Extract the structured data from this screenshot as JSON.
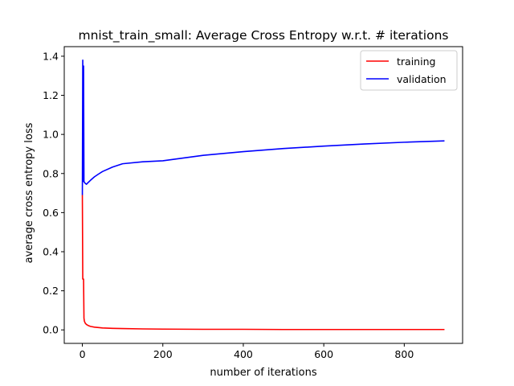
{
  "chart_data": {
    "type": "line",
    "title": "mnist_train_small: Average Cross Entropy w.r.t. # iterations",
    "xlabel": "number of iterations",
    "ylabel": "average cross entropy loss",
    "xlim": [
      -45,
      945
    ],
    "ylim": [
      -0.069,
      1.449
    ],
    "xticks": [
      0,
      200,
      400,
      600,
      800
    ],
    "yticks": [
      0.0,
      0.2,
      0.4,
      0.6,
      0.8,
      1.0,
      1.2,
      1.4
    ],
    "xtick_labels": [
      "0",
      "200",
      "400",
      "600",
      "800"
    ],
    "ytick_labels": [
      "0.0",
      "0.2",
      "0.4",
      "0.6",
      "0.8",
      "1.0",
      "1.2",
      "1.4"
    ],
    "grid": false,
    "legend_position": "top-right",
    "series": [
      {
        "name": "training",
        "color": "#ff0000",
        "x": [
          0,
          1,
          2,
          3,
          4,
          5,
          7,
          10,
          15,
          20,
          30,
          40,
          50,
          75,
          100,
          150,
          200,
          300,
          400,
          500,
          600,
          700,
          800,
          900
        ],
        "y": [
          0.69,
          0.26,
          0.26,
          0.26,
          0.06,
          0.045,
          0.035,
          0.028,
          0.022,
          0.018,
          0.014,
          0.012,
          0.01,
          0.008,
          0.007,
          0.005,
          0.004,
          0.003,
          0.003,
          0.002,
          0.002,
          0.002,
          0.002,
          0.002
        ]
      },
      {
        "name": "validation",
        "color": "#0000ff",
        "x": [
          0,
          1,
          2,
          3,
          4,
          5,
          7,
          10,
          15,
          20,
          30,
          40,
          50,
          75,
          100,
          150,
          200,
          300,
          400,
          500,
          600,
          700,
          800,
          900
        ],
        "y": [
          0.69,
          1.38,
          0.76,
          1.35,
          0.76,
          0.755,
          0.75,
          0.745,
          0.755,
          0.765,
          0.783,
          0.797,
          0.81,
          0.833,
          0.85,
          0.86,
          0.865,
          0.893,
          0.912,
          0.928,
          0.94,
          0.951,
          0.96,
          0.967
        ]
      }
    ]
  }
}
